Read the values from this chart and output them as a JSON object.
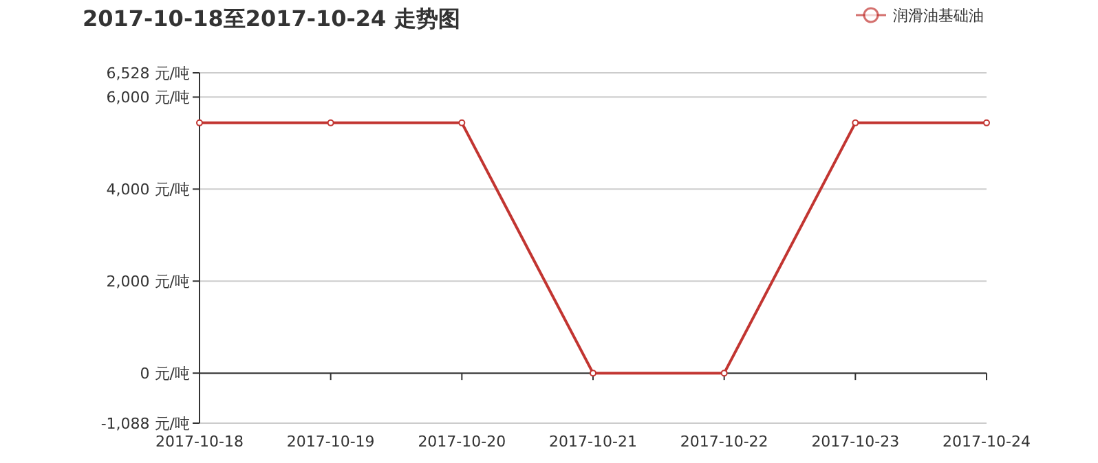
{
  "chart_data": {
    "type": "line",
    "title": "2017-10-18至2017-10-24 走势图",
    "categories": [
      "2017-10-18",
      "2017-10-19",
      "2017-10-20",
      "2017-10-21",
      "2017-10-22",
      "2017-10-23",
      "2017-10-24"
    ],
    "series": [
      {
        "name": "润滑油基础油",
        "color": "#c23531",
        "values": [
          5440,
          5440,
          5440,
          0,
          0,
          5440,
          5440
        ]
      }
    ],
    "ylim": [
      -1088,
      6528
    ],
    "yticks": [
      {
        "value": -1088,
        "label": "-1,088 元/吨"
      },
      {
        "value": 0,
        "label": "0 元/吨"
      },
      {
        "value": 2000,
        "label": "2,000 元/吨"
      },
      {
        "value": 4000,
        "label": "4,000 元/吨"
      },
      {
        "value": 6000,
        "label": "6,000 元/吨"
      },
      {
        "value": 6528,
        "label": "6,528 元/吨"
      }
    ],
    "grid": "y",
    "legend": "top right",
    "marker": "circle",
    "line_style": "solid"
  }
}
